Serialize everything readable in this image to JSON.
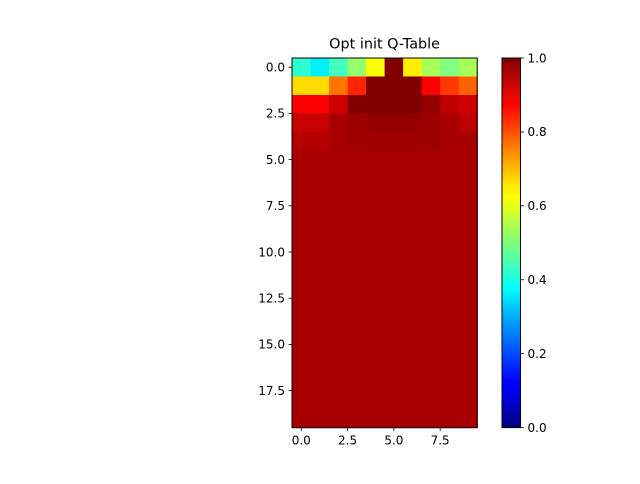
{
  "chart_data": {
    "type": "heatmap",
    "title": "Opt init Q-Table",
    "colormap": "jet",
    "vmin": 0.0,
    "vmax": 1.0,
    "n_cols": 10,
    "n_rows": 20,
    "xlim": [
      -0.5,
      9.5
    ],
    "ylim": [
      19.5,
      -0.5
    ],
    "x_ticks": [
      0.0,
      2.5,
      5.0,
      7.5
    ],
    "x_tick_labels": [
      "0.0",
      "2.5",
      "5.0",
      "7.5"
    ],
    "y_ticks": [
      0.0,
      2.5,
      5.0,
      7.5,
      10.0,
      12.5,
      15.0,
      17.5
    ],
    "y_tick_labels": [
      "0.0",
      "2.5",
      "5.0",
      "7.5",
      "10.0",
      "12.5",
      "15.0",
      "17.5"
    ],
    "colorbar_ticks": [
      0.0,
      0.2,
      0.4,
      0.6,
      0.8,
      1.0
    ],
    "colorbar_tick_labels": [
      "0.0",
      "0.2",
      "0.4",
      "0.6",
      "0.8",
      "1.0"
    ],
    "values": [
      [
        0.42,
        0.36,
        0.44,
        0.52,
        0.62,
        1.0,
        0.64,
        0.54,
        0.5,
        0.54
      ],
      [
        0.66,
        0.66,
        0.76,
        0.84,
        1.0,
        1.0,
        1.0,
        0.88,
        0.82,
        0.78
      ],
      [
        0.88,
        0.88,
        0.92,
        1.0,
        1.0,
        1.0,
        1.0,
        0.98,
        0.94,
        0.92
      ],
      [
        0.93,
        0.93,
        0.96,
        0.97,
        0.98,
        0.98,
        0.98,
        0.97,
        0.96,
        0.94
      ],
      [
        0.95,
        0.95,
        0.96,
        0.97,
        0.97,
        0.97,
        0.97,
        0.97,
        0.96,
        0.96
      ],
      [
        0.96,
        0.96,
        0.96,
        0.96,
        0.96,
        0.96,
        0.96,
        0.96,
        0.96,
        0.96
      ],
      [
        0.96,
        0.96,
        0.96,
        0.96,
        0.96,
        0.96,
        0.96,
        0.96,
        0.96,
        0.96
      ],
      [
        0.96,
        0.96,
        0.96,
        0.96,
        0.96,
        0.96,
        0.96,
        0.96,
        0.96,
        0.96
      ],
      [
        0.96,
        0.96,
        0.96,
        0.96,
        0.96,
        0.96,
        0.96,
        0.96,
        0.96,
        0.96
      ],
      [
        0.96,
        0.96,
        0.96,
        0.96,
        0.96,
        0.96,
        0.96,
        0.96,
        0.96,
        0.96
      ],
      [
        0.96,
        0.96,
        0.96,
        0.96,
        0.96,
        0.96,
        0.96,
        0.96,
        0.96,
        0.96
      ],
      [
        0.96,
        0.96,
        0.96,
        0.96,
        0.96,
        0.96,
        0.96,
        0.96,
        0.96,
        0.96
      ],
      [
        0.96,
        0.96,
        0.96,
        0.96,
        0.96,
        0.96,
        0.96,
        0.96,
        0.96,
        0.96
      ],
      [
        0.96,
        0.96,
        0.96,
        0.96,
        0.96,
        0.96,
        0.96,
        0.96,
        0.96,
        0.96
      ],
      [
        0.96,
        0.96,
        0.96,
        0.96,
        0.96,
        0.96,
        0.96,
        0.96,
        0.96,
        0.96
      ],
      [
        0.96,
        0.96,
        0.96,
        0.96,
        0.96,
        0.96,
        0.96,
        0.96,
        0.96,
        0.96
      ],
      [
        0.96,
        0.96,
        0.96,
        0.96,
        0.96,
        0.96,
        0.96,
        0.96,
        0.96,
        0.96
      ],
      [
        0.96,
        0.96,
        0.96,
        0.96,
        0.96,
        0.96,
        0.96,
        0.96,
        0.96,
        0.96
      ],
      [
        0.96,
        0.96,
        0.96,
        0.96,
        0.96,
        0.96,
        0.96,
        0.96,
        0.96,
        0.96
      ],
      [
        0.96,
        0.96,
        0.96,
        0.96,
        0.96,
        0.96,
        0.96,
        0.96,
        0.96,
        0.96
      ]
    ]
  }
}
